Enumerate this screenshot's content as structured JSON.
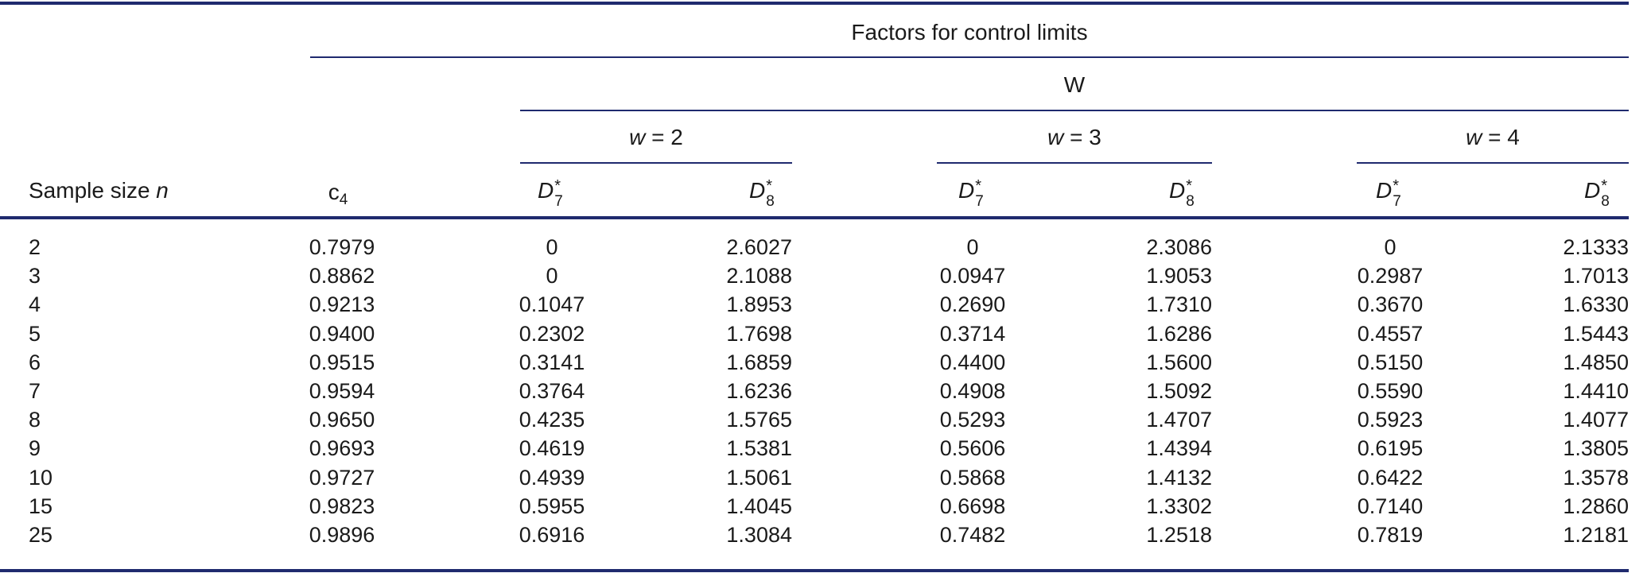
{
  "header": {
    "group_title": "Factors for control limits",
    "sub_group_title": "W",
    "w_groups": [
      {
        "var": "w",
        "eq": " = ",
        "val": "2"
      },
      {
        "var": "w",
        "eq": " = ",
        "val": "3"
      },
      {
        "var": "w",
        "eq": " = ",
        "val": "4"
      }
    ],
    "sample_size_label": "Sample size ",
    "sample_size_var": "n",
    "c4_base": "c",
    "c4_sub": "4",
    "d7_base": "D",
    "d7_sub": "7",
    "d8_base": "D",
    "d8_sub": "8",
    "star": "*"
  },
  "rows": [
    [
      "2",
      "0.7979",
      "0",
      "2.6027",
      "0",
      "2.3086",
      "0",
      "2.1333"
    ],
    [
      "3",
      "0.8862",
      "0",
      "2.1088",
      "0.0947",
      "1.9053",
      "0.2987",
      "1.7013"
    ],
    [
      "4",
      "0.9213",
      "0.1047",
      "1.8953",
      "0.2690",
      "1.7310",
      "0.3670",
      "1.6330"
    ],
    [
      "5",
      "0.9400",
      "0.2302",
      "1.7698",
      "0.3714",
      "1.6286",
      "0.4557",
      "1.5443"
    ],
    [
      "6",
      "0.9515",
      "0.3141",
      "1.6859",
      "0.4400",
      "1.5600",
      "0.5150",
      "1.4850"
    ],
    [
      "7",
      "0.9594",
      "0.3764",
      "1.6236",
      "0.4908",
      "1.5092",
      "0.5590",
      "1.4410"
    ],
    [
      "8",
      "0.9650",
      "0.4235",
      "1.5765",
      "0.5293",
      "1.4707",
      "0.5923",
      "1.4077"
    ],
    [
      "9",
      "0.9693",
      "0.4619",
      "1.5381",
      "0.5606",
      "1.4394",
      "0.6195",
      "1.3805"
    ],
    [
      "10",
      "0.9727",
      "0.4939",
      "1.5061",
      "0.5868",
      "1.4132",
      "0.6422",
      "1.3578"
    ],
    [
      "15",
      "0.9823",
      "0.5955",
      "1.4045",
      "0.6698",
      "1.3302",
      "0.7140",
      "1.2860"
    ],
    [
      "25",
      "0.9896",
      "0.6916",
      "1.3084",
      "0.7482",
      "1.2518",
      "0.7819",
      "1.2181"
    ]
  ]
}
